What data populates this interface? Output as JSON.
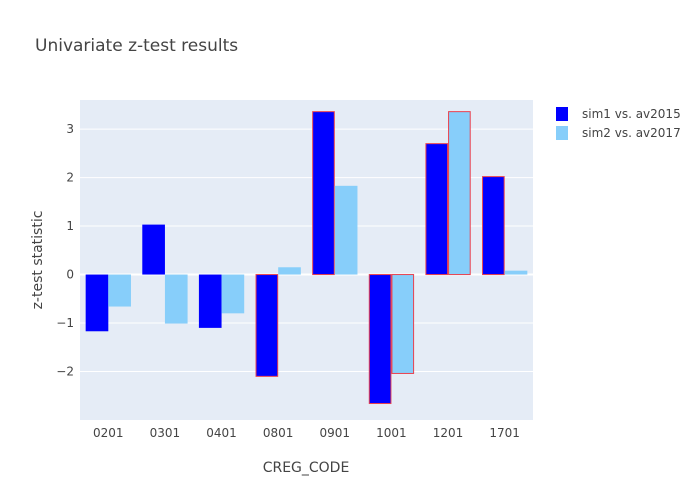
{
  "chart_data": {
    "type": "bar",
    "title": "Univariate z-test results",
    "xlabel": "CREG_CODE",
    "ylabel": "z-test statistic",
    "categories": [
      "0201",
      "0301",
      "0401",
      "0801",
      "0901",
      "1001",
      "1201",
      "1701"
    ],
    "ylim": [
      -3.0,
      3.6
    ],
    "yticks": [
      -2,
      -1,
      0,
      1,
      2,
      3
    ],
    "ytick_labels": [
      "−2",
      "−1",
      "0",
      "1",
      "2",
      "3"
    ],
    "grid": true,
    "legend_position": "top-right",
    "plot_background": "#E5ECF6",
    "highlight_outline_color": "#E8414F",
    "series": [
      {
        "name": "sim1 vs. av2015",
        "color": "#0000FF",
        "values": [
          -1.17,
          1.03,
          -1.1,
          -2.1,
          3.36,
          -2.66,
          2.7,
          2.02
        ],
        "outlined": [
          false,
          false,
          false,
          true,
          true,
          true,
          true,
          true
        ]
      },
      {
        "name": "sim2 vs. av2017",
        "color": "#87CEFA",
        "values": [
          -0.66,
          -1.01,
          -0.8,
          0.15,
          1.83,
          -2.04,
          3.36,
          0.08
        ],
        "outlined": [
          false,
          false,
          false,
          false,
          false,
          true,
          true,
          false
        ]
      }
    ]
  }
}
